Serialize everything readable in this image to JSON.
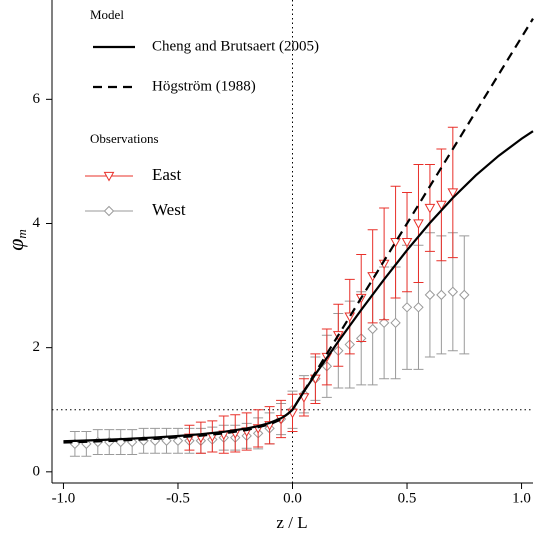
{
  "chart_data": {
    "type": "line",
    "xlabel": "z / L",
    "ylabel": "φ",
    "ylabel_sub": "m",
    "xlim": [
      -1.05,
      1.05
    ],
    "ylim": [
      -0.18,
      7.6
    ],
    "xticks": [
      {
        "value": -1,
        "label": "-1.0"
      },
      {
        "value": -0.5,
        "label": "-0.5"
      },
      {
        "value": 0,
        "label": "0.0"
      },
      {
        "value": 0.5,
        "label": "0.5"
      },
      {
        "value": 1,
        "label": "1.0"
      }
    ],
    "yticks": [
      0,
      2,
      4,
      6
    ],
    "vlines": [
      0
    ],
    "hlines": [
      1
    ],
    "legend_position": "upper left",
    "legend_titles": [
      "Model",
      "Observations"
    ],
    "series": [
      {
        "name": "West",
        "type": "errorbar",
        "marker": "diamond",
        "color": "#9a9a9a",
        "x": [
          -0.95,
          -0.9,
          -0.85,
          -0.8,
          -0.75,
          -0.7,
          -0.65,
          -0.6,
          -0.55,
          -0.5,
          -0.45,
          -0.4,
          -0.35,
          -0.3,
          -0.25,
          -0.2,
          -0.15,
          -0.1,
          -0.05,
          0,
          0.05,
          0.1,
          0.15,
          0.2,
          0.25,
          0.3,
          0.35,
          0.4,
          0.45,
          0.5,
          0.55,
          0.6,
          0.65,
          0.7,
          0.75
        ],
        "values": [
          0.45,
          0.45,
          0.48,
          0.48,
          0.48,
          0.48,
          0.5,
          0.5,
          0.5,
          0.5,
          0.5,
          0.5,
          0.52,
          0.55,
          0.55,
          0.58,
          0.62,
          0.7,
          0.85,
          1.0,
          1.25,
          1.5,
          1.7,
          1.95,
          2.05,
          2.15,
          2.3,
          2.4,
          2.4,
          2.65,
          2.65,
          2.85,
          2.85,
          2.9,
          2.85
        ],
        "errors": [
          0.2,
          0.2,
          0.2,
          0.2,
          0.2,
          0.2,
          0.2,
          0.2,
          0.2,
          0.2,
          0.2,
          0.2,
          0.2,
          0.2,
          0.2,
          0.2,
          0.25,
          0.25,
          0.25,
          0.3,
          0.3,
          0.35,
          0.5,
          0.6,
          0.7,
          0.75,
          0.9,
          0.9,
          0.9,
          1.0,
          1.0,
          1.0,
          0.95,
          0.95,
          0.95
        ]
      },
      {
        "name": "East",
        "type": "errorbar",
        "marker": "triangle-down",
        "color": "#e8302a",
        "x": [
          -0.45,
          -0.4,
          -0.35,
          -0.3,
          -0.25,
          -0.2,
          -0.15,
          -0.1,
          -0.05,
          0,
          0.05,
          0.1,
          0.15,
          0.2,
          0.25,
          0.3,
          0.35,
          0.4,
          0.45,
          0.5,
          0.55,
          0.6,
          0.65,
          0.7
        ],
        "values": [
          0.55,
          0.55,
          0.57,
          0.6,
          0.62,
          0.65,
          0.7,
          0.75,
          0.85,
          0.95,
          1.2,
          1.5,
          1.85,
          2.2,
          2.5,
          2.8,
          3.15,
          3.35,
          3.7,
          3.7,
          4.0,
          4.25,
          4.3,
          4.5
        ],
        "errors": [
          0.2,
          0.25,
          0.25,
          0.3,
          0.3,
          0.3,
          0.3,
          0.3,
          0.3,
          0.3,
          0.3,
          0.4,
          0.45,
          0.5,
          0.6,
          0.7,
          0.75,
          0.9,
          0.9,
          0.8,
          0.95,
          0.7,
          0.9,
          1.05
        ]
      },
      {
        "name": "Högström (1988)",
        "type": "line",
        "dashed": true,
        "color": "#000000",
        "x": [
          -1,
          -0.8,
          -0.6,
          -0.4,
          -0.3,
          -0.2,
          -0.1,
          -0.05,
          0,
          1.05
        ],
        "values": [
          0.471,
          0.497,
          0.531,
          0.582,
          0.619,
          0.673,
          0.764,
          0.845,
          1,
          7.3
        ]
      },
      {
        "name": "Cheng and Brutsaert (2005)",
        "type": "line",
        "dashed": false,
        "color": "#000000",
        "x": [
          -1,
          -0.9,
          -0.8,
          -0.7,
          -0.6,
          -0.5,
          -0.4,
          -0.3,
          -0.2,
          -0.15,
          -0.1,
          -0.05,
          -0.02,
          0,
          0.05,
          0.1,
          0.2,
          0.3,
          0.4,
          0.5,
          0.6,
          0.7,
          0.8,
          0.9,
          1,
          1.05
        ],
        "values": [
          0.492,
          0.505,
          0.519,
          0.535,
          0.554,
          0.577,
          0.606,
          0.644,
          0.699,
          0.736,
          0.788,
          0.863,
          0.933,
          1,
          1.294,
          1.571,
          2.1,
          2.608,
          3.1,
          3.57,
          4.01,
          4.413,
          4.774,
          5.09,
          5.365,
          5.487
        ]
      }
    ]
  }
}
